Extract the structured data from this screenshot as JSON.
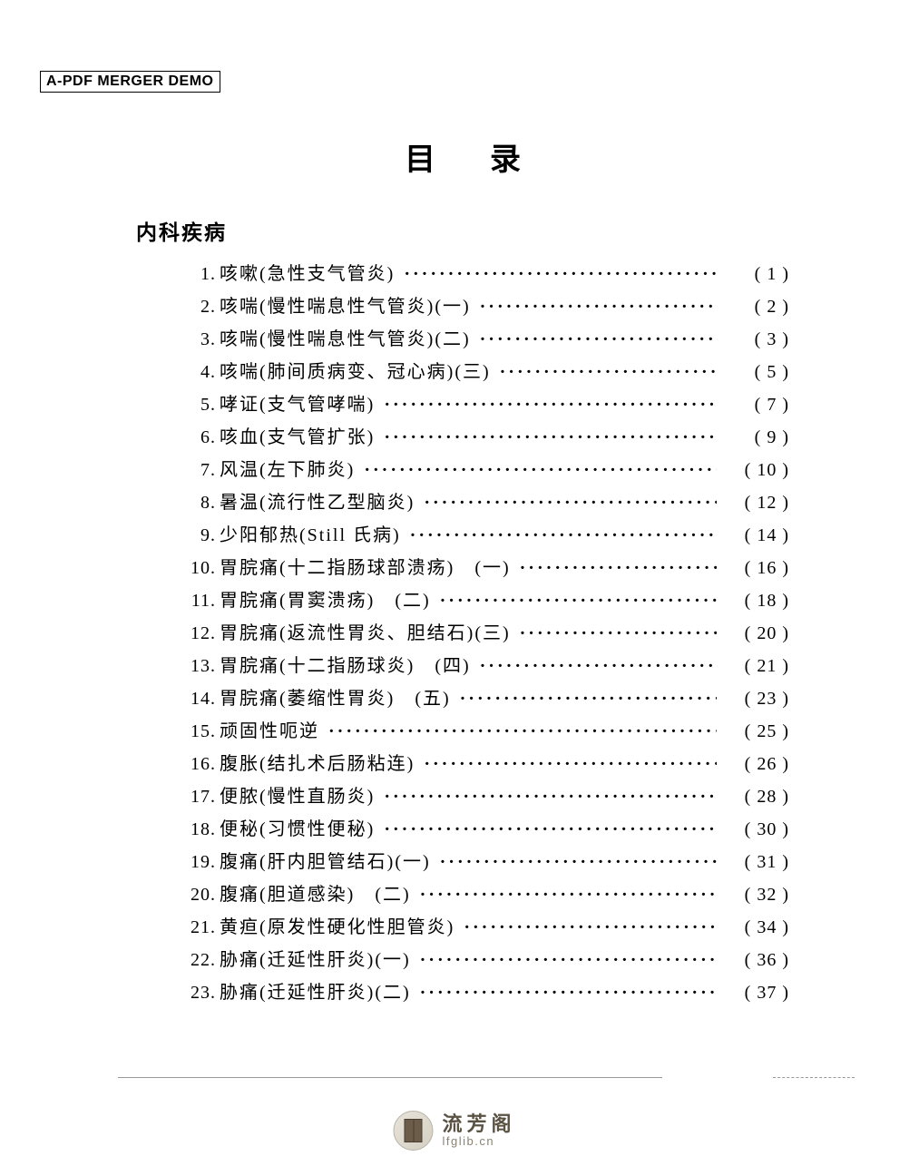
{
  "watermark": "A-PDF MERGER DEMO",
  "title": "目录",
  "section": "内科疾病",
  "entries": [
    {
      "num": "1.",
      "text": "咳嗽(急性支气管炎)",
      "page": "( 1 )"
    },
    {
      "num": "2.",
      "text": "咳喘(慢性喘息性气管炎)(一)",
      "page": "( 2 )"
    },
    {
      "num": "3.",
      "text": "咳喘(慢性喘息性气管炎)(二)",
      "page": "( 3 )"
    },
    {
      "num": "4.",
      "text": "咳喘(肺间质病变、冠心病)(三)",
      "page": "( 5 )"
    },
    {
      "num": "5.",
      "text": "哮证(支气管哮喘)",
      "page": "( 7 )"
    },
    {
      "num": "6.",
      "text": "咳血(支气管扩张)",
      "page": "( 9 )"
    },
    {
      "num": "7.",
      "text": "风温(左下肺炎)",
      "page": "( 10 )"
    },
    {
      "num": "8.",
      "text": "暑温(流行性乙型脑炎)",
      "page": "( 12 )"
    },
    {
      "num": "9.",
      "text": "少阳郁热(Still 氏病)",
      "page": "( 14 )"
    },
    {
      "num": "10.",
      "text": "胃脘痛(十二指肠球部溃疡)　(一)",
      "page": "( 16 )"
    },
    {
      "num": "11.",
      "text": "胃脘痛(胃窦溃疡)　(二)",
      "page": "( 18 )"
    },
    {
      "num": "12.",
      "text": "胃脘痛(返流性胃炎、胆结石)(三)",
      "page": "( 20 )"
    },
    {
      "num": "13.",
      "text": "胃脘痛(十二指肠球炎)　(四)",
      "page": "( 21 )"
    },
    {
      "num": "14.",
      "text": "胃脘痛(萎缩性胃炎)　(五)",
      "page": "( 23 )"
    },
    {
      "num": "15.",
      "text": "顽固性呃逆",
      "page": "( 25 )"
    },
    {
      "num": "16.",
      "text": "腹胀(结扎术后肠粘连)",
      "page": "( 26 )"
    },
    {
      "num": "17.",
      "text": "便脓(慢性直肠炎)",
      "page": "( 28 )"
    },
    {
      "num": "18.",
      "text": "便秘(习惯性便秘)",
      "page": "( 30 )"
    },
    {
      "num": "19.",
      "text": "腹痛(肝内胆管结石)(一)",
      "page": "( 31 )"
    },
    {
      "num": "20.",
      "text": "腹痛(胆道感染)　(二)",
      "page": "( 32 )"
    },
    {
      "num": "21.",
      "text": "黄疸(原发性硬化性胆管炎)",
      "page": "( 34 )"
    },
    {
      "num": "22.",
      "text": "胁痛(迁延性肝炎)(一)",
      "page": "( 36 )"
    },
    {
      "num": "23.",
      "text": "胁痛(迁延性肝炎)(二)",
      "page": "( 37 )"
    }
  ],
  "dots": "····························································",
  "footer": {
    "name_cn": "流芳阁",
    "url": "lfglib.cn"
  },
  "colors": {
    "text": "#000000",
    "background": "#ffffff",
    "logo_primary": "#5a5242",
    "logo_secondary": "#8a8374"
  }
}
